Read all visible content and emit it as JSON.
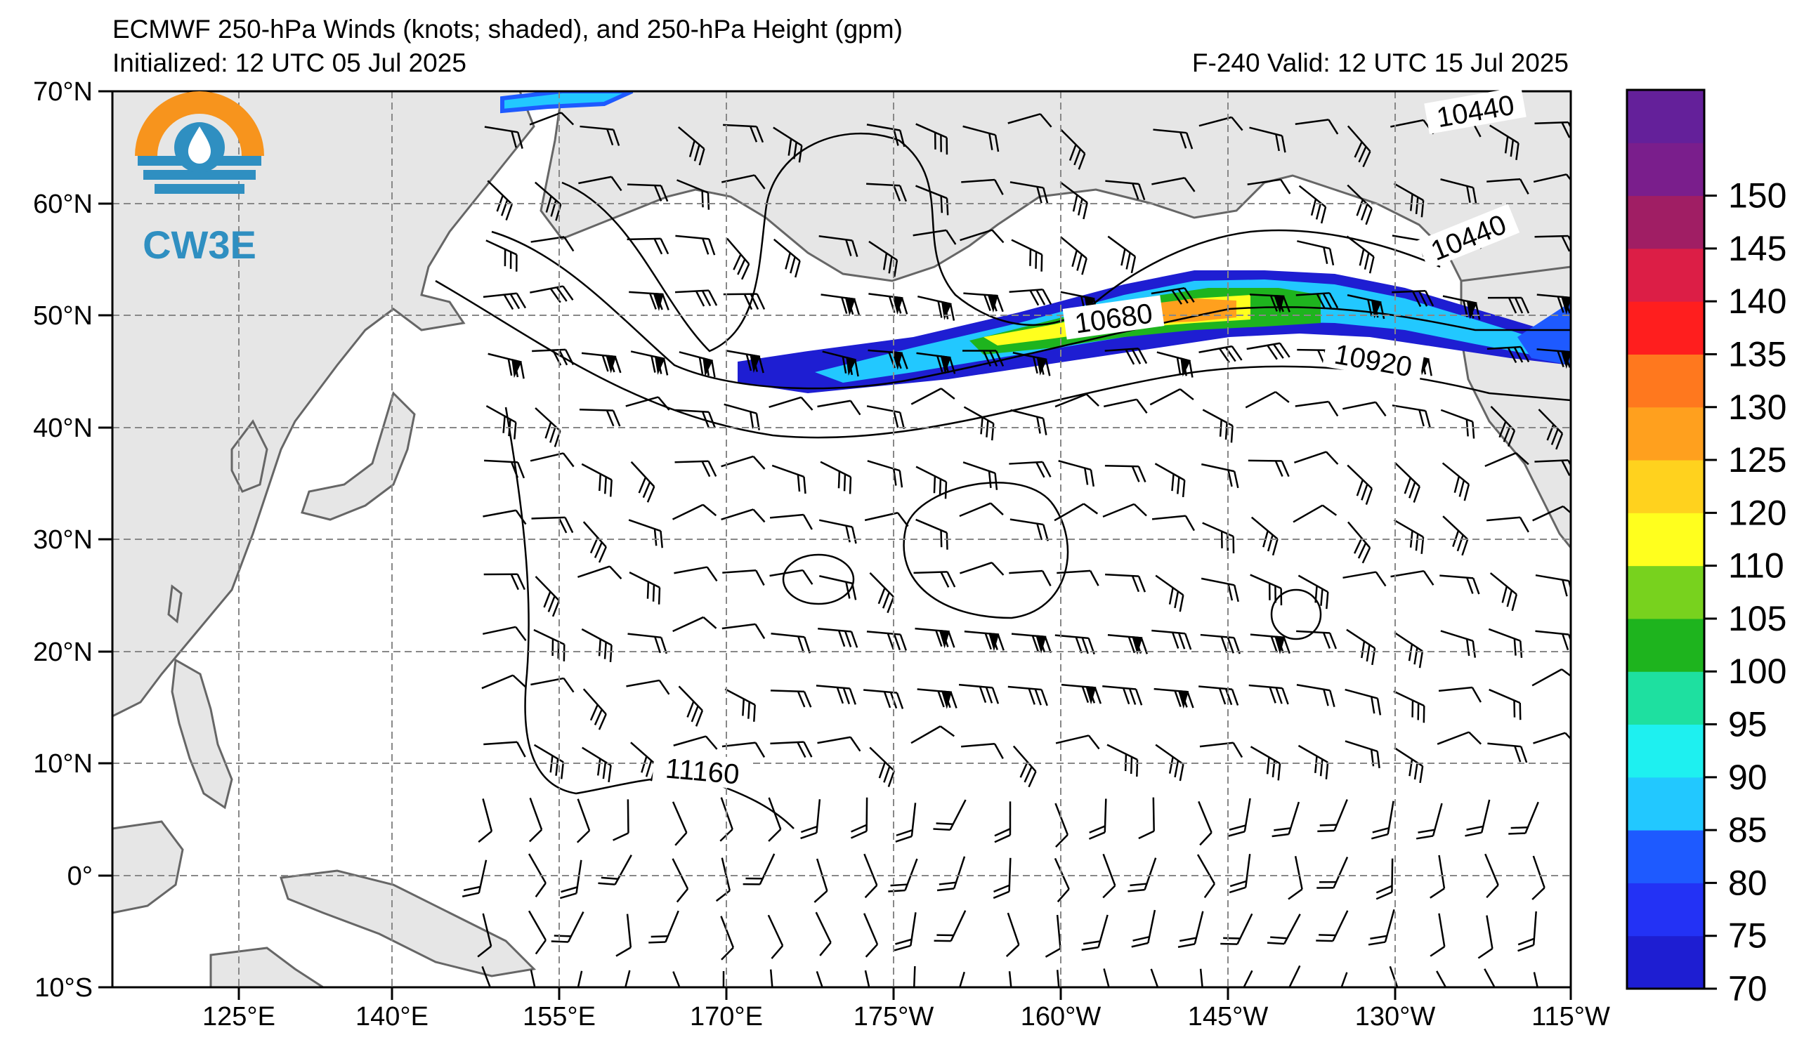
{
  "header": {
    "title": "ECMWF 250-hPa Winds (knots; shaded), and 250-hPa Height (gpm)",
    "initialized": "Initialized: 12 UTC 05 Jul 2025",
    "valid": "F-240  Valid: 12 UTC 15 Jul 2025"
  },
  "logo": {
    "text": "CW3E",
    "ring_color": "#f7941d",
    "primary_color": "#2f8fc1"
  },
  "axes": {
    "lat_labels": [
      "70°N",
      "60°N",
      "50°N",
      "40°N",
      "30°N",
      "20°N",
      "10°N",
      "0°",
      "10°S"
    ],
    "lon_labels": [
      "125°E",
      "140°E",
      "155°E",
      "170°E",
      "175°W",
      "160°W",
      "145°W",
      "130°W",
      "115°W"
    ]
  },
  "colorbar": {
    "ticks": [
      "70",
      "75",
      "80",
      "85",
      "90",
      "95",
      "100",
      "105",
      "110",
      "120",
      "125",
      "130",
      "135",
      "140",
      "145",
      "150"
    ],
    "colors": [
      "#1e1ed2",
      "#2332f5",
      "#1e5aff",
      "#22c8ff",
      "#1ef0f0",
      "#1ee0a0",
      "#1eb41e",
      "#78d21e",
      "#ffff1e",
      "#ffd21e",
      "#ffa01e",
      "#ff781e",
      "#ff1e1e",
      "#dc1e46",
      "#a01e64",
      "#7a1e8c",
      "#64209a"
    ]
  },
  "contour_labels": [
    "10440",
    "10440",
    "10680",
    "10920",
    "11160"
  ],
  "colors": {
    "land": "#e6e6e6",
    "coast": "#666666",
    "grid": "#888888",
    "contour": "#000000"
  }
}
